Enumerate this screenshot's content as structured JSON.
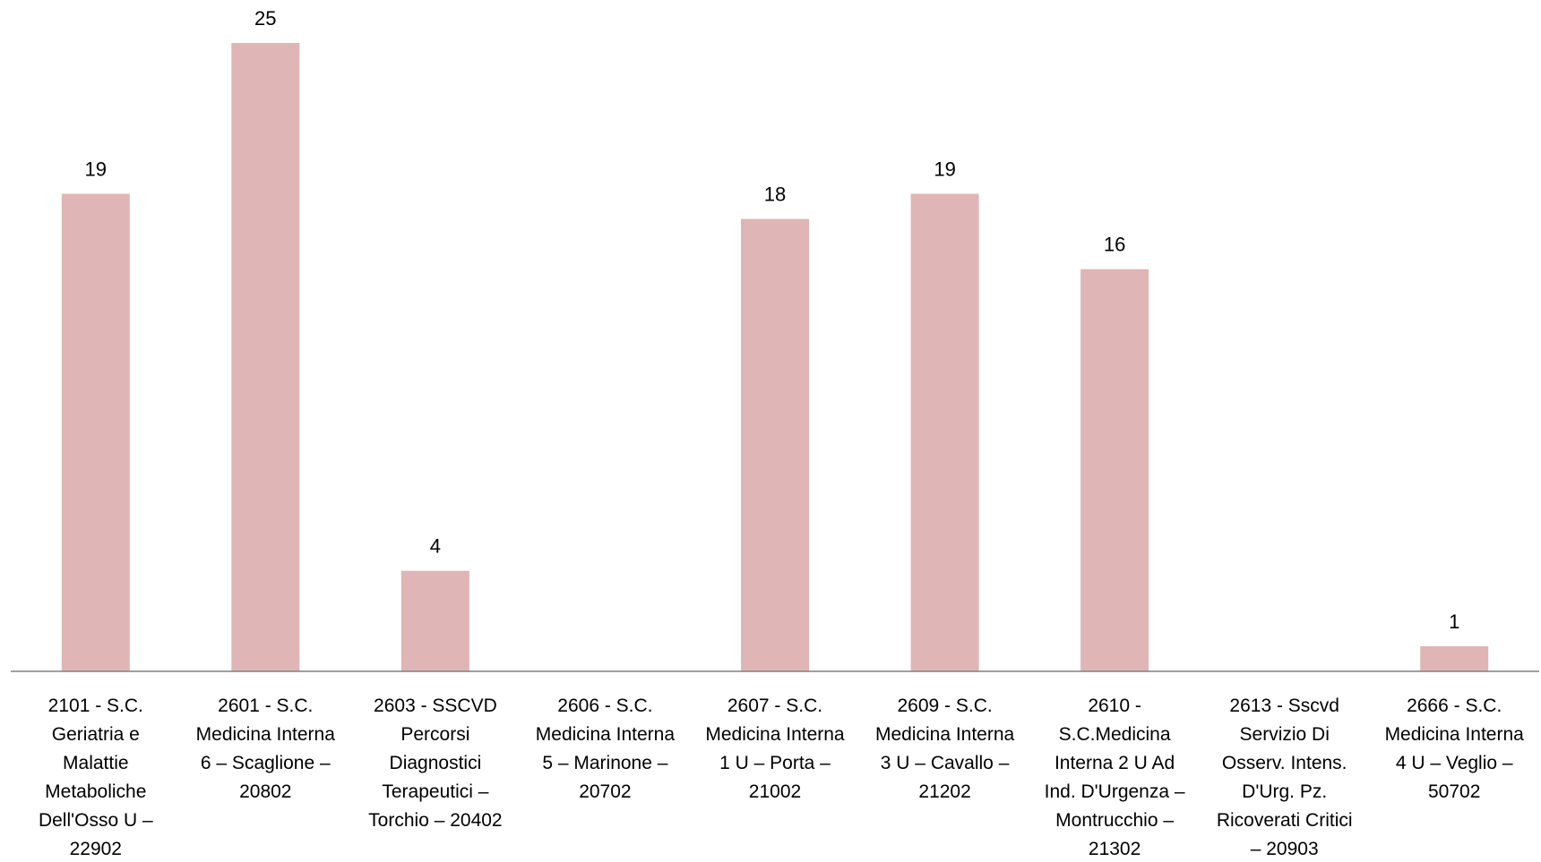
{
  "chart_data": {
    "type": "bar",
    "title": "",
    "xlabel": "",
    "ylabel": "",
    "ylim": [
      0,
      25
    ],
    "grid": false,
    "legend": "none",
    "bar_color": "#dfb5b6",
    "axis_color": "#808080",
    "categories": [
      [
        "2101 - S.C.",
        "Geriatria e",
        "Malattie",
        "Metaboliche",
        "Dell'Osso U –",
        "22902"
      ],
      [
        "2601 - S.C.",
        "Medicina Interna",
        "6 – Scaglione –",
        "20802"
      ],
      [
        "2603 - SSCVD",
        "Percorsi",
        "Diagnostici",
        "Terapeutici –",
        "Torchio – 20402"
      ],
      [
        "2606 - S.C.",
        "Medicina Interna",
        "5 – Marinone –",
        "20702"
      ],
      [
        "2607 - S.C.",
        "Medicina Interna",
        "1 U – Porta –",
        "21002"
      ],
      [
        "2609 - S.C.",
        "Medicina Interna",
        "3 U – Cavallo –",
        "21202"
      ],
      [
        "2610 -",
        "S.C.Medicina",
        "Interna 2 U Ad",
        "Ind. D'Urgenza –",
        "Montrucchio –",
        "21302"
      ],
      [
        "2613 - Sscvd",
        "Servizio Di",
        "Osserv. Intens.",
        "D'Urg. Pz.",
        "Ricoverati Critici",
        "– 20903"
      ],
      [
        "2666 - S.C.",
        "Medicina Interna",
        "4 U – Veglio –",
        "50702"
      ]
    ],
    "values": [
      19,
      25,
      4,
      null,
      18,
      19,
      16,
      null,
      1
    ],
    "data_labels": [
      "19",
      "25",
      "4",
      "",
      "18",
      "19",
      "16",
      "",
      "1"
    ]
  }
}
